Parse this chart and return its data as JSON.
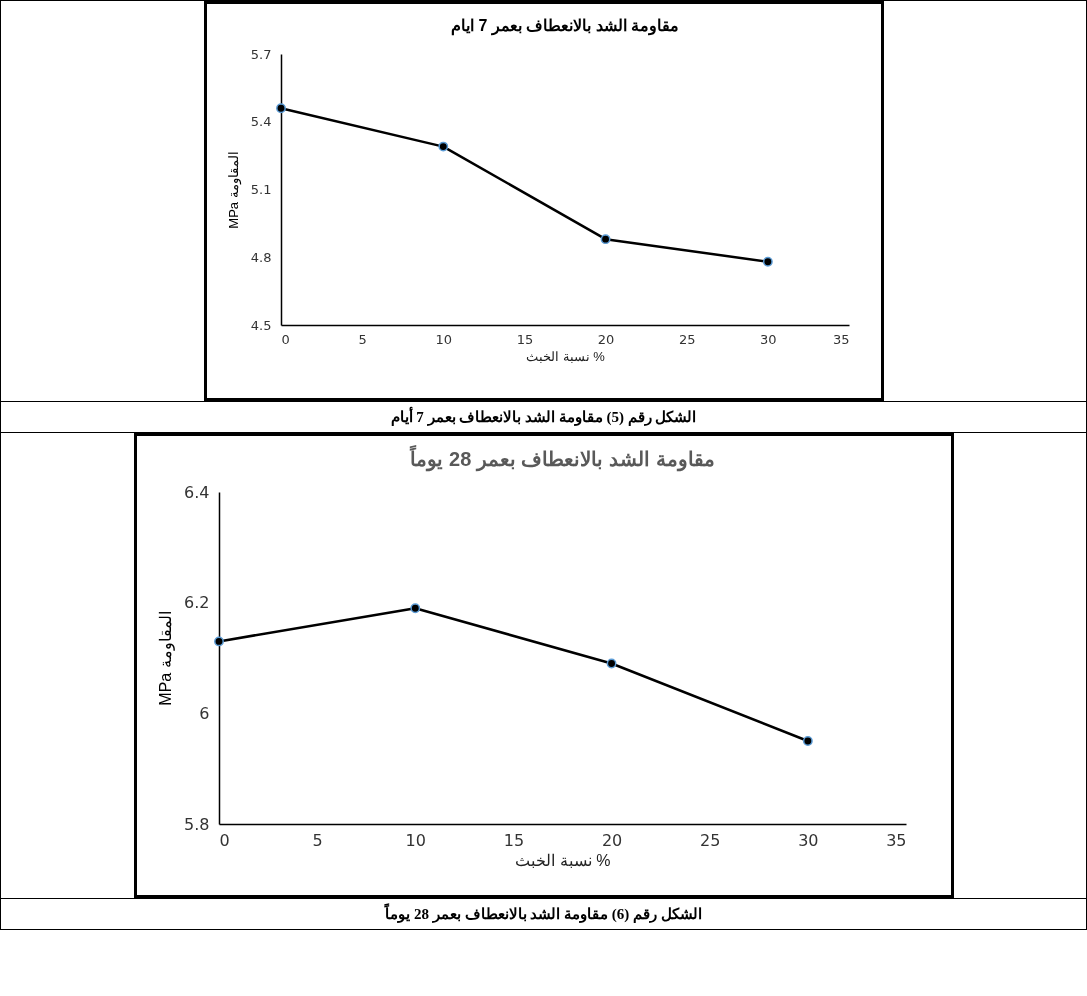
{
  "chart_data": [
    {
      "type": "line",
      "title": "مقاومة الشد بالانعطاف بعمر 7 ايام",
      "xlabel": "نسبة الخبث  %",
      "ylabel": "MPa المقاومة",
      "x": [
        0,
        10,
        20,
        30
      ],
      "series": [
        {
          "color": "#000000",
          "values": [
            5.46,
            5.29,
            4.88,
            4.78
          ]
        }
      ],
      "xlim": [
        0,
        35
      ],
      "xticks": [
        0,
        5,
        10,
        15,
        20,
        25,
        30,
        35
      ],
      "ylim": [
        4.5,
        5.7
      ],
      "yticks": [
        4.5,
        4.8,
        5.1,
        5.4,
        5.7
      ],
      "grid": false,
      "legend": false,
      "marker": "circle",
      "line_style": "solid",
      "annotations": [
        "الشكل رقم (5) مقاومة الشد بالانعطاف بعمر 7 أيام"
      ]
    },
    {
      "type": "line",
      "title": "مقاومة الشد بالانعطاف بعمر 28 يوماً",
      "xlabel": "نسبة الخبث %",
      "ylabel": "MPa المقاومة",
      "x": [
        0,
        10,
        20,
        30
      ],
      "series": [
        {
          "color": "#000000",
          "values": [
            6.13,
            6.19,
            6.09,
            5.95
          ]
        }
      ],
      "xlim": [
        0,
        35
      ],
      "xticks": [
        0,
        5,
        10,
        15,
        20,
        25,
        30,
        35
      ],
      "ylim": [
        5.8,
        6.4
      ],
      "yticks": [
        5.8,
        6,
        6.2,
        6.4
      ],
      "grid": false,
      "legend": false,
      "marker": "circle",
      "line_style": "solid",
      "annotations": [
        "الشكل رقم (6) مقاومة الشد بالانعطاف بعمر 28 يوماً"
      ]
    }
  ]
}
